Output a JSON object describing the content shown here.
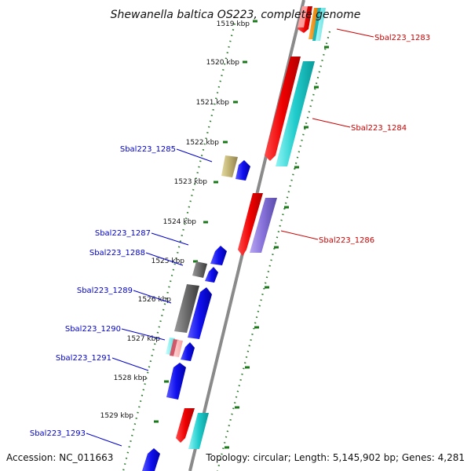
{
  "title": "Shewanella baltica OS223, complete genome",
  "footer": {
    "accession": "Accession: NC_011663",
    "summary": "Topology: circular; Length: 5,145,902 bp; Genes: 4,281"
  },
  "colors": {
    "backbone": "#8a8a8a",
    "forward_ticks": "#2e7d2e",
    "label_forward": "#cc0000",
    "label_reverse": "#0000cc"
  },
  "scale": {
    "ticks": [
      {
        "label": "1519 kbp"
      },
      {
        "label": "1520 kbp"
      },
      {
        "label": "1521 kbp"
      },
      {
        "label": "1522 kbp"
      },
      {
        "label": "1523 kbp"
      },
      {
        "label": "1524 kbp"
      },
      {
        "label": "1525 kbp"
      },
      {
        "label": "1526 kbp"
      },
      {
        "label": "1527 kbp"
      },
      {
        "label": "1528 kbp"
      },
      {
        "label": "1529 kbp"
      }
    ]
  },
  "gene_labels": [
    {
      "text": "Sbal223_1283",
      "strand": "forward"
    },
    {
      "text": "Sbal223_1284",
      "strand": "forward"
    },
    {
      "text": "Sbal223_1285",
      "strand": "reverse"
    },
    {
      "text": "Sbal223_1286",
      "strand": "forward"
    },
    {
      "text": "Sbal223_1287",
      "strand": "reverse"
    },
    {
      "text": "Sbal223_1288",
      "strand": "reverse"
    },
    {
      "text": "Sbal223_1289",
      "strand": "reverse"
    },
    {
      "text": "Sbal223_1290",
      "strand": "reverse"
    },
    {
      "text": "Sbal223_1291",
      "strand": "reverse"
    },
    {
      "text": "Sbal223_1293",
      "strand": "reverse"
    }
  ]
}
